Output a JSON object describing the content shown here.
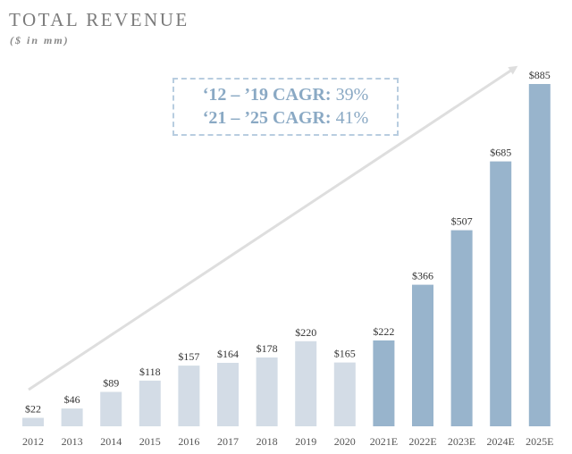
{
  "title": "TOTAL REVENUE",
  "subtitle": "($ in mm)",
  "cagr": [
    {
      "label": "‘12 – ’19 CAGR:",
      "value": "39%"
    },
    {
      "label": "‘21 – ’25 CAGR:",
      "value": "41%"
    }
  ],
  "colors": {
    "historical": "#d3dce6",
    "estimate": "#98b4cc",
    "arrow": "#dedede",
    "cagr_text": "#8aa9c4"
  },
  "chart_data": {
    "type": "bar",
    "title": "TOTAL REVENUE",
    "subtitle": "($ in mm)",
    "xlabel": "",
    "ylabel": "",
    "ylim": [
      0,
      900
    ],
    "grid": false,
    "categories": [
      "2012",
      "2013",
      "2014",
      "2015",
      "2016",
      "2017",
      "2018",
      "2019",
      "2020",
      "2021E",
      "2022E",
      "2023E",
      "2024E",
      "2025E"
    ],
    "values": [
      22,
      46,
      89,
      118,
      157,
      164,
      178,
      220,
      165,
      222,
      366,
      507,
      685,
      885
    ],
    "value_labels": [
      "$22",
      "$46",
      "$89",
      "$118",
      "$157",
      "$164",
      "$178",
      "$220",
      "$165",
      "$222",
      "$366",
      "$507",
      "$685",
      "$885"
    ],
    "series_type": [
      "historical",
      "historical",
      "historical",
      "historical",
      "historical",
      "historical",
      "historical",
      "historical",
      "historical",
      "estimate",
      "estimate",
      "estimate",
      "estimate",
      "estimate"
    ]
  }
}
